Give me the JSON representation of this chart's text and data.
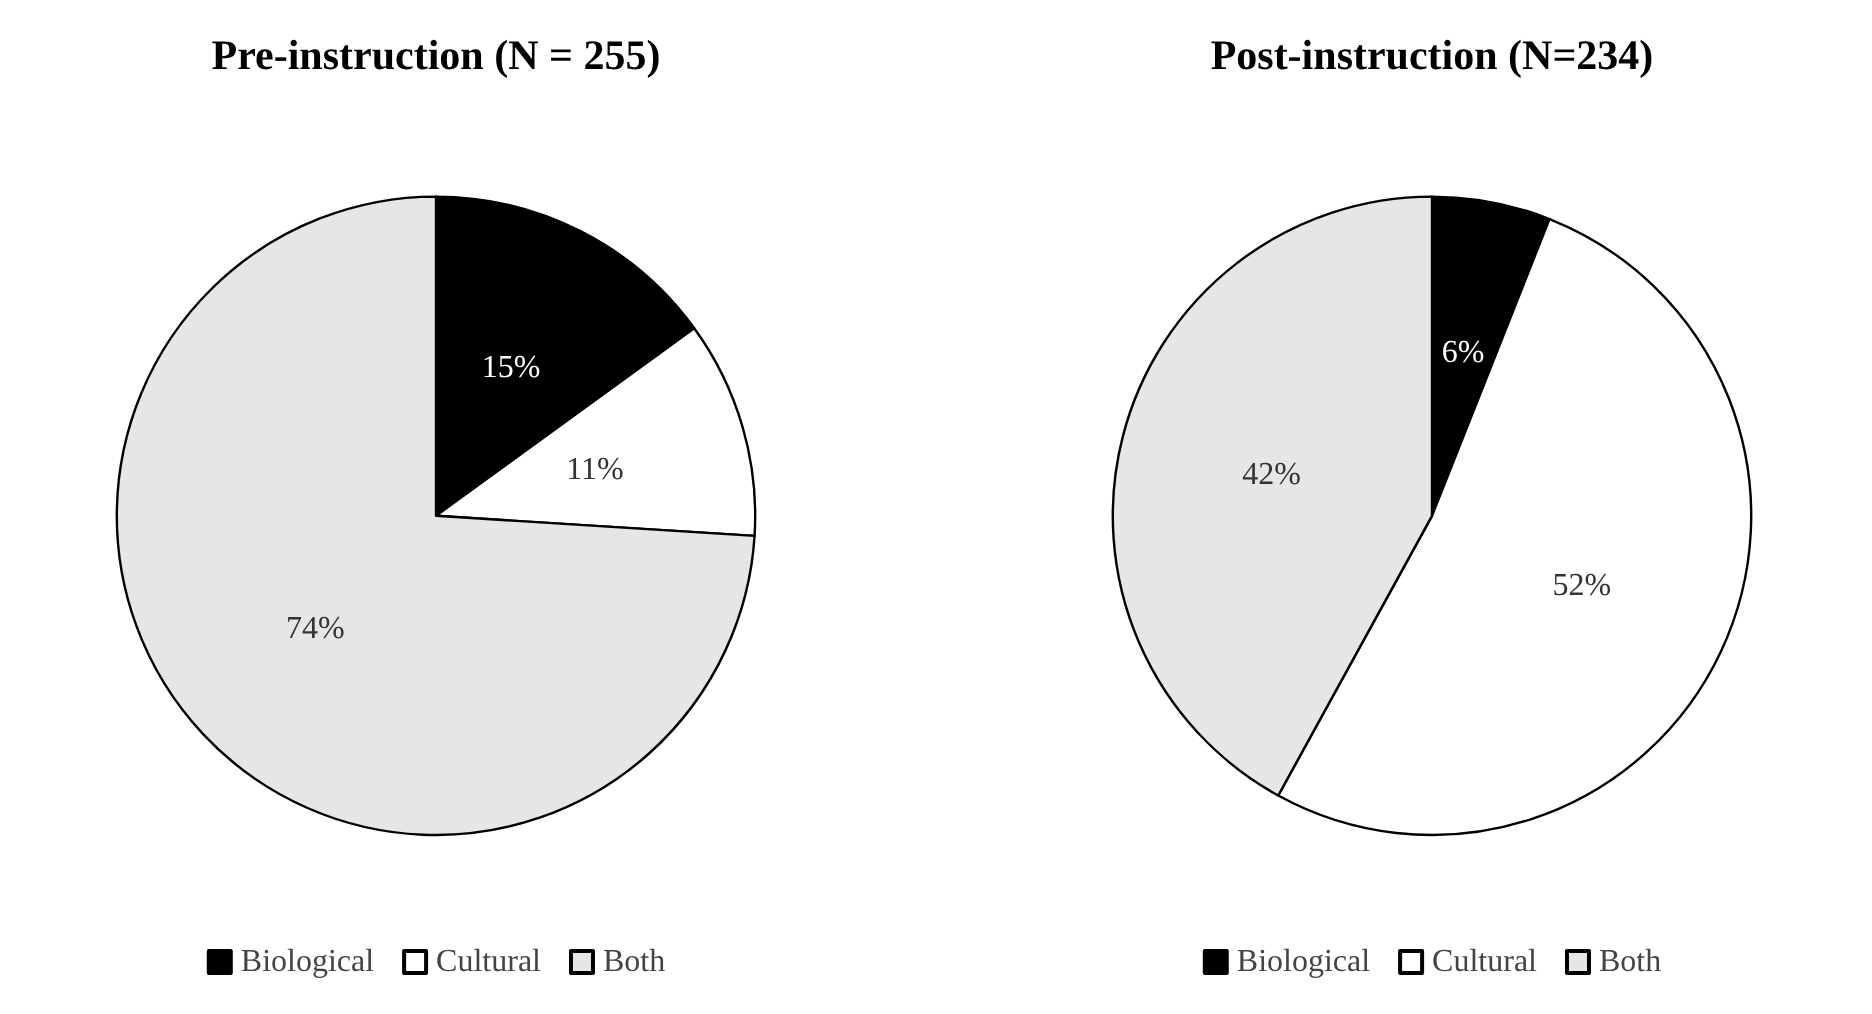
{
  "chart_data": [
    {
      "type": "pie",
      "title": "Pre-instruction (N = 255)",
      "categories": [
        "Biological",
        "Cultural",
        "Both"
      ],
      "values": [
        15,
        11,
        74
      ],
      "value_labels": [
        "15%",
        "11%",
        "74%"
      ],
      "colors": [
        "#000000",
        "#ffffff",
        "#e6e6e6"
      ],
      "legend": "bottom"
    },
    {
      "type": "pie",
      "title": "Post-instruction (N=234)",
      "categories": [
        "Biological",
        "Cultural",
        "Both"
      ],
      "values": [
        6,
        52,
        42
      ],
      "value_labels": [
        "6%",
        "52%",
        "42%"
      ],
      "colors": [
        "#000000",
        "#ffffff",
        "#e6e6e6"
      ],
      "legend": "bottom"
    }
  ]
}
